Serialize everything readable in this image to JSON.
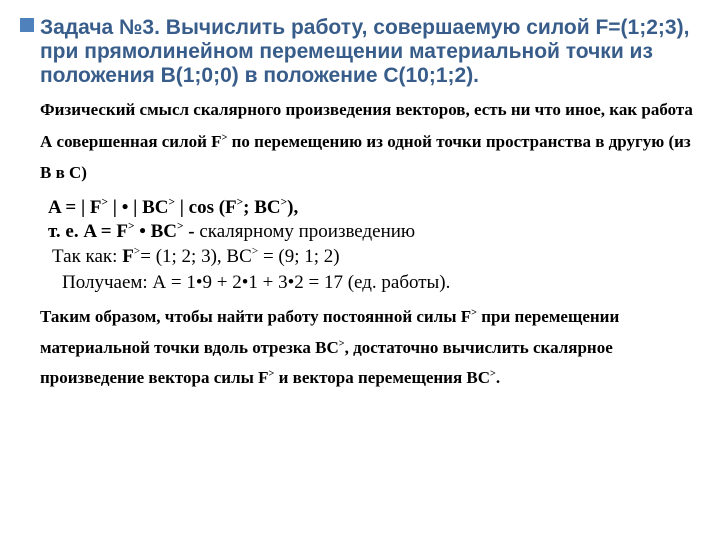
{
  "title_text": "Задача №3. Вычислить работу, совершаемую силой F=(1;2;3), при прямолинейном перемещении материальной точки из положения B(1;0;0) в положение C(10;1;2).",
  "title_color": "#385D8A",
  "bullet_color": "#4F81BD",
  "intro_html": "Физический смысл скалярного произведения векторов, есть ни что иное, как работа А совершенная силой F<sup>></sup> по перемещению из одной точки пространства в другую (из B в C)",
  "formula_line1_html": "A = | F<sup>></sup> | • | BC<sup>></sup> | cos (F<sup>></sup>; BC<sup>></sup>),",
  "formula_line2_html": "т. е. A = F<sup>></sup> • BC<sup>></sup> <b>-</b> скалярному произведению",
  "vectors_html": "Так как: <b>F</b><sup>></sup>= (1; 2; 3), BC<sup>></sup> = (9; 1; 2)",
  "result_text": "Получаем: А = 1•9 + 2•1 + 3•2 = 17 (ед. работы).",
  "conclusion_html": "Таким образом, чтобы найти работу постоянной силы F<sup>></sup> при перемещении материальной точки вдоль отрезка BC<sup>></sup>, достаточно вычислить скалярное произведение вектора силы F<sup>></sup> и вектора перемещения BC<sup>></sup>."
}
